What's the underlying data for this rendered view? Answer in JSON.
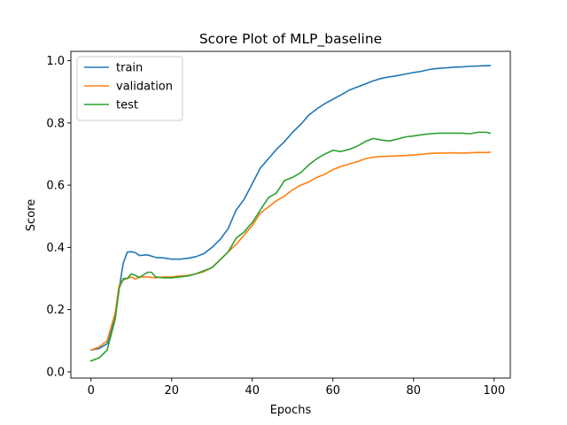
{
  "chart_data": {
    "type": "line",
    "title": "Score Plot of MLP_baseline",
    "xlabel": "Epochs",
    "ylabel": "Score",
    "xlim": [
      -5,
      104
    ],
    "ylim": [
      -0.02,
      1.03
    ],
    "xticks": [
      0,
      20,
      40,
      60,
      80,
      100
    ],
    "yticks": [
      0.0,
      0.2,
      0.4,
      0.6,
      0.8,
      1.0
    ],
    "xtick_labels": [
      "0",
      "20",
      "40",
      "60",
      "80",
      "100"
    ],
    "ytick_labels": [
      "0.0",
      "0.2",
      "0.4",
      "0.6",
      "0.8",
      "1.0"
    ],
    "grid": false,
    "legend_position": "upper-left",
    "series": [
      {
        "name": "train",
        "color": "#1f77b4",
        "points": [
          [
            0,
            0.07
          ],
          [
            2,
            0.075
          ],
          [
            4,
            0.09
          ],
          [
            6,
            0.18
          ],
          [
            7,
            0.27
          ],
          [
            8,
            0.35
          ],
          [
            9,
            0.385
          ],
          [
            10,
            0.386
          ],
          [
            11,
            0.383
          ],
          [
            12,
            0.374
          ],
          [
            14,
            0.376
          ],
          [
            16,
            0.368
          ],
          [
            18,
            0.366
          ],
          [
            20,
            0.362
          ],
          [
            22,
            0.362
          ],
          [
            24,
            0.365
          ],
          [
            26,
            0.37
          ],
          [
            28,
            0.38
          ],
          [
            30,
            0.4
          ],
          [
            32,
            0.425
          ],
          [
            34,
            0.46
          ],
          [
            36,
            0.52
          ],
          [
            38,
            0.555
          ],
          [
            40,
            0.605
          ],
          [
            42,
            0.655
          ],
          [
            44,
            0.685
          ],
          [
            46,
            0.715
          ],
          [
            48,
            0.74
          ],
          [
            50,
            0.77
          ],
          [
            52,
            0.795
          ],
          [
            54,
            0.825
          ],
          [
            56,
            0.845
          ],
          [
            58,
            0.862
          ],
          [
            60,
            0.876
          ],
          [
            62,
            0.89
          ],
          [
            64,
            0.905
          ],
          [
            66,
            0.915
          ],
          [
            68,
            0.925
          ],
          [
            70,
            0.935
          ],
          [
            72,
            0.943
          ],
          [
            74,
            0.948
          ],
          [
            76,
            0.952
          ],
          [
            78,
            0.957
          ],
          [
            80,
            0.962
          ],
          [
            82,
            0.966
          ],
          [
            84,
            0.972
          ],
          [
            86,
            0.975
          ],
          [
            88,
            0.977
          ],
          [
            90,
            0.979
          ],
          [
            92,
            0.98
          ],
          [
            94,
            0.982
          ],
          [
            96,
            0.983
          ],
          [
            98,
            0.984
          ],
          [
            99,
            0.984
          ]
        ]
      },
      {
        "name": "validation",
        "color": "#ff7f0e",
        "points": [
          [
            0,
            0.07
          ],
          [
            2,
            0.08
          ],
          [
            4,
            0.1
          ],
          [
            6,
            0.19
          ],
          [
            7,
            0.28
          ],
          [
            8,
            0.295
          ],
          [
            9,
            0.3
          ],
          [
            10,
            0.305
          ],
          [
            11,
            0.298
          ],
          [
            12,
            0.305
          ],
          [
            14,
            0.305
          ],
          [
            16,
            0.302
          ],
          [
            18,
            0.305
          ],
          [
            20,
            0.305
          ],
          [
            22,
            0.308
          ],
          [
            24,
            0.31
          ],
          [
            26,
            0.315
          ],
          [
            28,
            0.322
          ],
          [
            30,
            0.335
          ],
          [
            32,
            0.36
          ],
          [
            34,
            0.385
          ],
          [
            36,
            0.41
          ],
          [
            38,
            0.44
          ],
          [
            40,
            0.47
          ],
          [
            42,
            0.51
          ],
          [
            44,
            0.53
          ],
          [
            46,
            0.55
          ],
          [
            48,
            0.565
          ],
          [
            50,
            0.585
          ],
          [
            52,
            0.6
          ],
          [
            54,
            0.61
          ],
          [
            56,
            0.625
          ],
          [
            58,
            0.635
          ],
          [
            60,
            0.65
          ],
          [
            62,
            0.66
          ],
          [
            64,
            0.668
          ],
          [
            66,
            0.675
          ],
          [
            68,
            0.685
          ],
          [
            70,
            0.69
          ],
          [
            72,
            0.692
          ],
          [
            74,
            0.693
          ],
          [
            76,
            0.694
          ],
          [
            78,
            0.695
          ],
          [
            80,
            0.697
          ],
          [
            82,
            0.699
          ],
          [
            84,
            0.702
          ],
          [
            86,
            0.703
          ],
          [
            88,
            0.703
          ],
          [
            90,
            0.704
          ],
          [
            92,
            0.703
          ],
          [
            94,
            0.704
          ],
          [
            96,
            0.705
          ],
          [
            98,
            0.705
          ],
          [
            99,
            0.706
          ]
        ]
      },
      {
        "name": "test",
        "color": "#2ca02c",
        "points": [
          [
            0,
            0.035
          ],
          [
            2,
            0.045
          ],
          [
            4,
            0.07
          ],
          [
            6,
            0.17
          ],
          [
            7,
            0.27
          ],
          [
            8,
            0.3
          ],
          [
            9,
            0.3
          ],
          [
            10,
            0.315
          ],
          [
            11,
            0.31
          ],
          [
            12,
            0.303
          ],
          [
            14,
            0.32
          ],
          [
            15,
            0.32
          ],
          [
            16,
            0.305
          ],
          [
            18,
            0.302
          ],
          [
            20,
            0.302
          ],
          [
            22,
            0.305
          ],
          [
            24,
            0.308
          ],
          [
            26,
            0.315
          ],
          [
            28,
            0.325
          ],
          [
            30,
            0.335
          ],
          [
            32,
            0.36
          ],
          [
            34,
            0.385
          ],
          [
            36,
            0.43
          ],
          [
            38,
            0.45
          ],
          [
            40,
            0.48
          ],
          [
            42,
            0.52
          ],
          [
            44,
            0.56
          ],
          [
            46,
            0.575
          ],
          [
            48,
            0.615
          ],
          [
            50,
            0.625
          ],
          [
            52,
            0.64
          ],
          [
            54,
            0.665
          ],
          [
            56,
            0.685
          ],
          [
            58,
            0.7
          ],
          [
            60,
            0.712
          ],
          [
            62,
            0.708
          ],
          [
            64,
            0.715
          ],
          [
            66,
            0.725
          ],
          [
            68,
            0.74
          ],
          [
            70,
            0.75
          ],
          [
            72,
            0.745
          ],
          [
            74,
            0.742
          ],
          [
            76,
            0.748
          ],
          [
            78,
            0.755
          ],
          [
            80,
            0.758
          ],
          [
            82,
            0.762
          ],
          [
            84,
            0.765
          ],
          [
            86,
            0.767
          ],
          [
            88,
            0.767
          ],
          [
            90,
            0.767
          ],
          [
            92,
            0.767
          ],
          [
            94,
            0.765
          ],
          [
            96,
            0.77
          ],
          [
            98,
            0.77
          ],
          [
            99,
            0.767
          ]
        ]
      }
    ]
  }
}
